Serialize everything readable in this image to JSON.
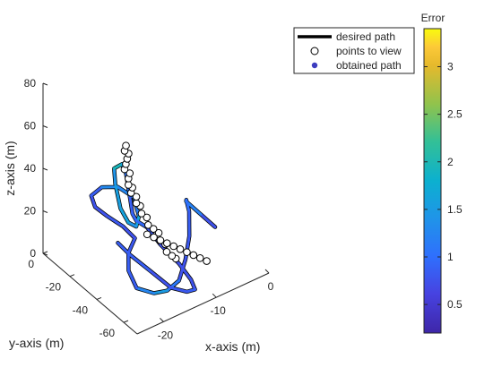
{
  "chart_data": {
    "type": "line",
    "title": "",
    "projection": "3d",
    "xlabel": "x-axis (m)",
    "ylabel": "y-axis (m)",
    "zlabel": "z-axis (m)",
    "x_ticks": [
      "0",
      "-10",
      "-20"
    ],
    "y_ticks": [
      "0",
      "-20",
      "-40",
      "-60"
    ],
    "z_ticks": [
      "0",
      "20",
      "40",
      "60",
      "80"
    ],
    "xlim": [
      -25,
      0
    ],
    "ylim": [
      -70,
      0
    ],
    "zlim": [
      0,
      80
    ],
    "grid": false,
    "legend_position": "top-right (outside)",
    "legend": [
      {
        "label": "desired path",
        "marker": "line",
        "color": "#000000"
      },
      {
        "label": "points to view",
        "marker": "open-circle",
        "color": "#000000"
      },
      {
        "label": "obtained path",
        "marker": "filled-dot",
        "color": "#3d3dbf"
      }
    ],
    "colorbar": {
      "label": "Error",
      "range": [
        0.2,
        3.4
      ],
      "ticks": [
        "0.5",
        "1",
        "1.5",
        "2",
        "2.5",
        "3"
      ],
      "tick_values": [
        0.5,
        1,
        1.5,
        2,
        2.5,
        3
      ],
      "colormap": "parula"
    },
    "series": [
      {
        "name": "desired path",
        "color": "#000000",
        "points": [
          [
            0,
            -30,
            0
          ],
          [
            -3,
            -31,
            10
          ],
          [
            -6,
            -32,
            20
          ],
          [
            -7,
            -36,
            24
          ],
          [
            -8,
            -42,
            23
          ],
          [
            -10,
            -50,
            18
          ],
          [
            -12,
            -55,
            12
          ],
          [
            -14,
            -58,
            6
          ],
          [
            -16,
            -57,
            3
          ],
          [
            -18,
            -55,
            3
          ],
          [
            -20,
            -50,
            5
          ],
          [
            -20,
            -44,
            10
          ],
          [
            -19,
            -40,
            15
          ],
          [
            -17,
            -37,
            18
          ],
          [
            -18,
            -32,
            22
          ],
          [
            -20,
            -28,
            27
          ],
          [
            -22,
            -27,
            33
          ],
          [
            -23,
            -28,
            40
          ],
          [
            -22,
            -32,
            45
          ],
          [
            -20,
            -36,
            45
          ],
          [
            -18,
            -40,
            40
          ],
          [
            -17,
            -40,
            30
          ],
          [
            -17,
            -38,
            24
          ],
          [
            -18,
            -36,
            26
          ],
          [
            -20,
            -38,
            36
          ],
          [
            -22,
            -42,
            52
          ],
          [
            -23,
            -45,
            62
          ],
          [
            -22,
            -47,
            64
          ],
          [
            -21,
            -46,
            58
          ],
          [
            -20,
            -45,
            45
          ],
          [
            -19,
            -43,
            35
          ],
          [
            -18,
            -42,
            30
          ],
          [
            -17,
            -46,
            28
          ],
          [
            -16,
            -52,
            22
          ],
          [
            -14,
            -58,
            14
          ],
          [
            -13,
            -63,
            8
          ],
          [
            -13,
            -66,
            5
          ],
          [
            -14,
            -64,
            4
          ],
          [
            -16,
            -60,
            6
          ],
          [
            -18,
            -52,
            12
          ],
          [
            -20,
            -45,
            18
          ],
          [
            -21,
            -40,
            22
          ]
        ]
      },
      {
        "name": "points to view",
        "color": "#000000",
        "points": [
          [
            -10,
            -40,
            2
          ],
          [
            -11,
            -41,
            5
          ],
          [
            -12,
            -41,
            8
          ],
          [
            -12,
            -40,
            11
          ],
          [
            -13,
            -40,
            14
          ],
          [
            -13,
            -39,
            17
          ],
          [
            -14,
            -39,
            20
          ],
          [
            -15,
            -39,
            23
          ],
          [
            -15,
            -38,
            26
          ],
          [
            -16,
            -38,
            29
          ],
          [
            -16,
            -37,
            32
          ],
          [
            -17,
            -38,
            35
          ],
          [
            -17,
            -38,
            38
          ],
          [
            -18,
            -38,
            41
          ],
          [
            -18,
            -39,
            44
          ],
          [
            -19,
            -40,
            47
          ],
          [
            -19,
            -40,
            50
          ],
          [
            -19,
            -41,
            53
          ],
          [
            -20,
            -41,
            56
          ],
          [
            -20,
            -42,
            59
          ],
          [
            -20,
            -43,
            62
          ],
          [
            -20,
            -44,
            65
          ],
          [
            -21,
            -45,
            68
          ],
          [
            -21,
            -46,
            71
          ],
          [
            -18,
            -50,
            28
          ],
          [
            -17,
            -51,
            26
          ],
          [
            -16,
            -52,
            24
          ],
          [
            -15,
            -53,
            22
          ],
          [
            -14,
            -54,
            20
          ],
          [
            -13,
            -55,
            18
          ],
          [
            -12,
            -56,
            16
          ],
          [
            -11,
            -57,
            14
          ],
          [
            -10,
            -58,
            12
          ],
          [
            -9,
            -59,
            10
          ]
        ]
      },
      {
        "name": "obtained path",
        "color": "#3d3dbf",
        "points": [
          [
            0,
            -30,
            0
          ],
          [
            -3,
            -31,
            10
          ],
          [
            -6,
            -32,
            20
          ],
          [
            -7,
            -36,
            24
          ],
          [
            -8,
            -42,
            23
          ],
          [
            -10,
            -50,
            18
          ],
          [
            -12,
            -55,
            12
          ],
          [
            -14,
            -58,
            6
          ],
          [
            -16,
            -57,
            3
          ],
          [
            -18,
            -55,
            3
          ],
          [
            -20,
            -50,
            5
          ],
          [
            -20,
            -44,
            10
          ],
          [
            -19,
            -40,
            15
          ],
          [
            -17,
            -37,
            18
          ],
          [
            -18,
            -32,
            22
          ],
          [
            -20,
            -28,
            27
          ],
          [
            -22,
            -27,
            33
          ],
          [
            -23,
            -28,
            40
          ],
          [
            -22,
            -32,
            45
          ],
          [
            -20,
            -36,
            45
          ],
          [
            -18,
            -40,
            40
          ],
          [
            -17,
            -40,
            30
          ],
          [
            -17,
            -38,
            24
          ],
          [
            -18,
            -36,
            26
          ],
          [
            -20,
            -38,
            36
          ],
          [
            -22,
            -42,
            52
          ],
          [
            -23,
            -45,
            62
          ],
          [
            -22,
            -47,
            64
          ],
          [
            -21,
            -46,
            58
          ],
          [
            -20,
            -45,
            45
          ],
          [
            -19,
            -43,
            35
          ],
          [
            -18,
            -42,
            30
          ],
          [
            -17,
            -46,
            28
          ],
          [
            -16,
            -52,
            22
          ],
          [
            -14,
            -58,
            14
          ],
          [
            -13,
            -63,
            8
          ],
          [
            -13,
            -66,
            5
          ],
          [
            -14,
            -64,
            4
          ],
          [
            -16,
            -60,
            6
          ],
          [
            -18,
            -52,
            12
          ],
          [
            -20,
            -45,
            18
          ],
          [
            -21,
            -40,
            22
          ]
        ],
        "error": [
          0.7,
          0.8,
          1.6,
          1.2,
          0.8,
          0.9,
          0.7,
          0.8,
          1.4,
          1.6,
          0.9,
          0.8,
          0.9,
          0.7,
          0.8,
          0.8,
          0.7,
          0.8,
          0.9,
          1.7,
          0.8,
          1.5,
          1.8,
          1.0,
          2.2,
          0.9,
          1.9,
          2.0,
          1.2,
          0.9,
          0.8,
          1.0,
          0.9,
          0.7,
          0.8,
          0.7,
          0.8,
          0.9,
          0.7,
          0.8,
          0.9,
          0.8
        ]
      }
    ]
  }
}
